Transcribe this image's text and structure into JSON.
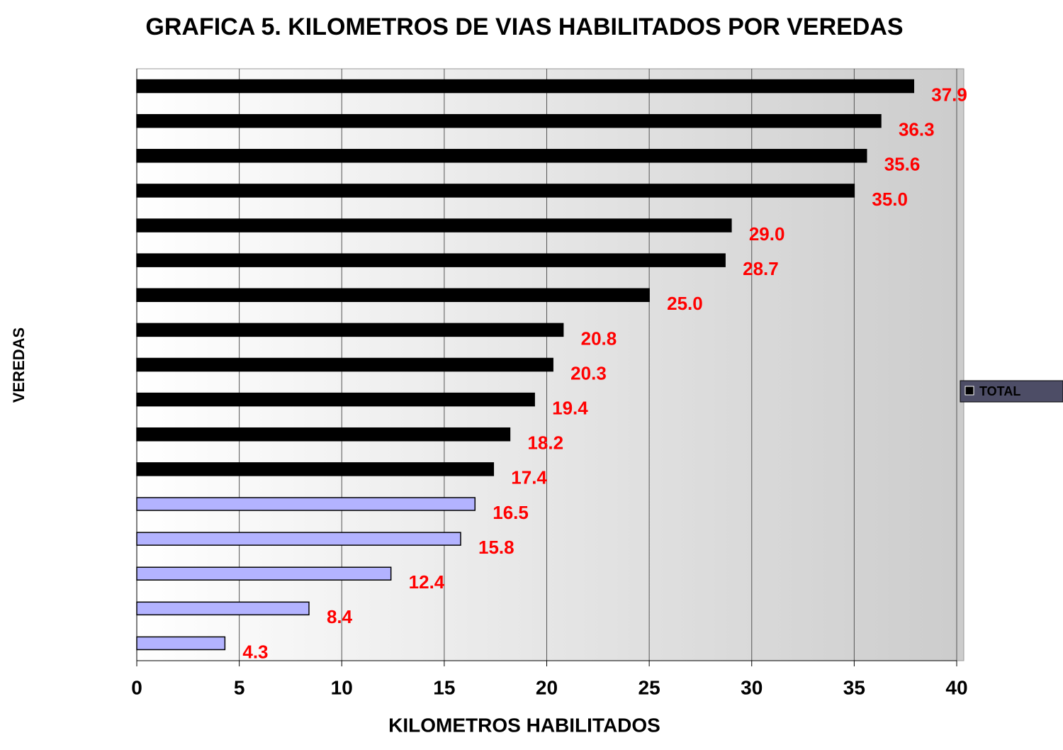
{
  "chart_data": {
    "type": "hbar",
    "title": "GRAFICA 5. KILOMETROS DE VIAS HABILITADOS POR VEREDAS",
    "xlabel": "KILOMETROS HABILITADOS",
    "ylabel": "VEREDAS",
    "categories": [
      null,
      null,
      null,
      null,
      null,
      null,
      null,
      null,
      null,
      null,
      null,
      null,
      null,
      null,
      null,
      null,
      null
    ],
    "series": [
      {
        "name": "TOTAL",
        "color": "#000000",
        "values": [
          37.9,
          36.3,
          35.6,
          35.0,
          29.0,
          28.7,
          25.0,
          20.8,
          20.3,
          19.4,
          18.2,
          17.4,
          16.5,
          15.8,
          12.4,
          8.4,
          4.3
        ],
        "value_labels": [
          "37.9",
          "36.3",
          "35.6",
          "35.0",
          "29.0",
          "28.7",
          "25.0",
          "20.8",
          "20.3",
          "19.4",
          "18.2",
          "17.4",
          "16.5",
          "15.8",
          "12.4",
          "8.4",
          "4.3"
        ],
        "colors": [
          "#000000",
          "#000000",
          "#000000",
          "#000000",
          "#000000",
          "#000000",
          "#000000",
          "#000000",
          "#000000",
          "#000000",
          "#000000",
          "#000000",
          "#b3b3ff",
          "#b3b3ff",
          "#b3b3ff",
          "#b3b3ff",
          "#b3b3ff"
        ]
      }
    ],
    "label_color": "#ff0000",
    "xlim": [
      0,
      40
    ],
    "xticks": [
      0,
      5,
      10,
      15,
      20,
      25,
      30,
      35,
      40
    ],
    "grid": true,
    "legend": "right"
  }
}
